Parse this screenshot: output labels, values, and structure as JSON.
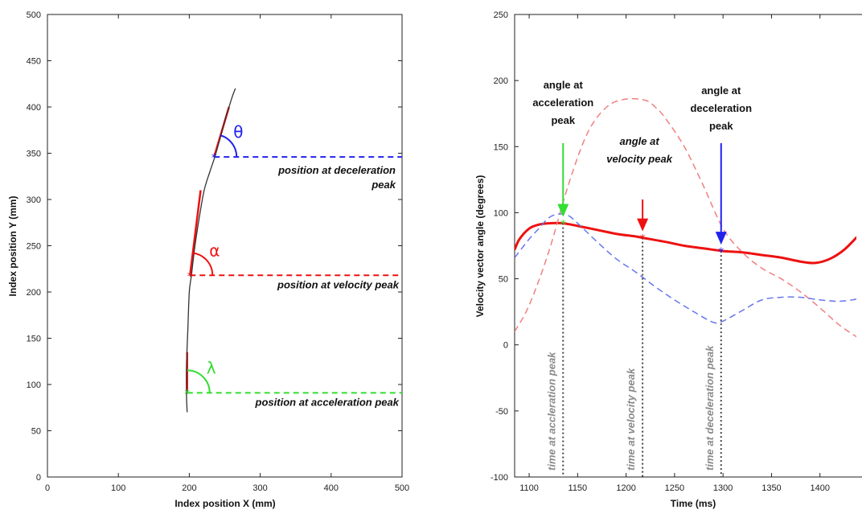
{
  "chart_data": [
    {
      "type": "line",
      "xlabel": "Index position X (mm)",
      "ylabel": "Index position Y (mm)",
      "xlim": [
        0,
        500
      ],
      "ylim": [
        0,
        500
      ],
      "xticks": [
        "0",
        "100",
        "200",
        "300",
        "400",
        "500"
      ],
      "yticks": [
        "0",
        "50",
        "100",
        "150",
        "200",
        "250",
        "300",
        "350",
        "400",
        "450",
        "500"
      ],
      "grid": false,
      "trajectory": {
        "color": "#333333",
        "x": [
          197,
          196,
          196,
          198,
          200,
          203,
          208,
          214,
          221,
          229,
          236,
          243,
          250,
          256,
          261,
          265
        ],
        "y": [
          70,
          90,
          120,
          160,
          200,
          218,
          250,
          280,
          310,
          330,
          346,
          365,
          385,
          400,
          412,
          420
        ]
      },
      "markers": [
        {
          "name": "acceleration",
          "x": 197,
          "y": 91,
          "color": "#33dd33",
          "tangent_to": [
            197,
            135
          ],
          "line_label": "position at acceleration peak",
          "angle_symbol": "λ"
        },
        {
          "name": "velocity",
          "x": 201,
          "y": 218,
          "color": "#ee1111",
          "tangent_to": [
            216,
            310
          ],
          "line_label": "position at velocity peak",
          "angle_symbol": "α"
        },
        {
          "name": "deceleration",
          "x": 235,
          "y": 346,
          "color": "#2222ee",
          "tangent_to": [
            256,
            400
          ],
          "line_label_lines": [
            "position at deceleration",
            "peak"
          ],
          "angle_symbol": "θ"
        }
      ]
    },
    {
      "type": "line",
      "xlabel": "Time  (ms)",
      "ylabel": "Velocity vector angle (degrees)",
      "xlim": [
        1085,
        1450
      ],
      "ylim": [
        -100,
        250
      ],
      "xticks": [
        "1100",
        "1150",
        "1200",
        "1250",
        "1300",
        "1350",
        "1400"
      ],
      "yticks": [
        "-100",
        "-50",
        "0",
        "50",
        "100",
        "150",
        "200",
        "250"
      ],
      "grid": false,
      "series": [
        {
          "color": "#ee1111",
          "style": "solid",
          "x": [
            1085,
            1090,
            1100,
            1110,
            1120,
            1135,
            1150,
            1170,
            1190,
            1210,
            1217,
            1240,
            1260,
            1280,
            1300,
            1320,
            1340,
            1360,
            1380,
            1395,
            1410,
            1425,
            1440,
            1450
          ],
          "y": [
            72,
            80,
            88,
            91,
            92,
            92,
            90,
            87,
            84,
            82,
            81,
            78,
            75,
            73,
            71,
            70,
            68,
            66,
            63,
            62,
            65,
            72,
            83,
            90
          ]
        },
        {
          "color": "#f08080",
          "style": "dashed",
          "x": [
            1085,
            1100,
            1120,
            1140,
            1160,
            1180,
            1200,
            1220,
            1230,
            1240,
            1260,
            1280,
            1300,
            1320,
            1340,
            1360,
            1380,
            1400,
            1420,
            1440,
            1450
          ],
          "y": [
            10,
            30,
            70,
            120,
            160,
            180,
            186,
            185,
            180,
            172,
            150,
            120,
            88,
            70,
            58,
            50,
            40,
            28,
            15,
            5,
            0
          ]
        },
        {
          "color": "#6677ee",
          "style": "dashed",
          "x": [
            1085,
            1100,
            1110,
            1120,
            1130,
            1140,
            1150,
            1170,
            1190,
            1210,
            1230,
            1250,
            1270,
            1290,
            1300,
            1320,
            1340,
            1360,
            1380,
            1400,
            1420,
            1440,
            1450
          ],
          "y": [
            66,
            80,
            88,
            96,
            99,
            98,
            92,
            78,
            65,
            55,
            44,
            34,
            25,
            17,
            18,
            26,
            34,
            36,
            36,
            34,
            33,
            35,
            38
          ]
        }
      ],
      "markers": [
        {
          "name": "acceleration",
          "x": 1135,
          "y": 92,
          "color": "#33dd33",
          "label_lines": [
            "angle at",
            "acceleration",
            "peak"
          ],
          "time_label": "time at accleration peak"
        },
        {
          "name": "velocity",
          "x": 1217,
          "y": 81,
          "color": "#ee1111",
          "label_lines": [
            "angle at",
            "velocity peak"
          ],
          "time_label": "time at velocity peak"
        },
        {
          "name": "deceleration",
          "x": 1298,
          "y": 71,
          "color": "#2222ee",
          "label_lines": [
            "angle at",
            "deceleration",
            "peak"
          ],
          "time_label": "time at deceleration peak"
        }
      ]
    }
  ]
}
